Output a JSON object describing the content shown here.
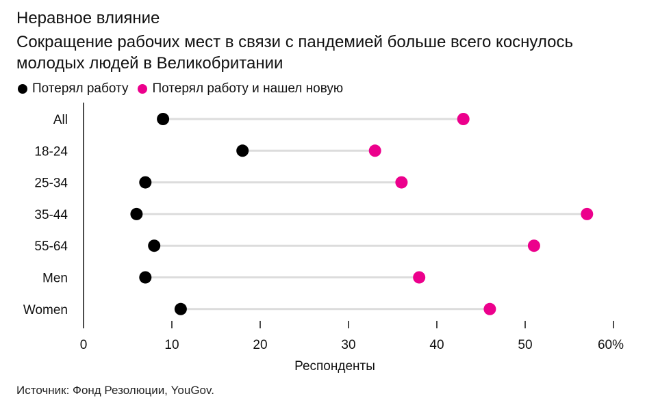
{
  "title": "Неравное влияние",
  "subtitle": "Сокращение рабочих мест в связи с пандемией больше всего коснулось молодых людей в Великобритании",
  "source": "Источник: Фонд Резолюции, YouGov.",
  "colors": {
    "lost_job": "#000000",
    "found_new": "#ec008c",
    "connector": "#dcdcdc",
    "axis": "#111111"
  },
  "chart_data": {
    "type": "dumbbell",
    "orientation": "horizontal",
    "categories": [
      "All",
      "18-24",
      "25-34",
      "35-44",
      "55-64",
      "Men",
      "Women"
    ],
    "series": [
      {
        "name": "Потерял работу",
        "color": "#000000",
        "values": [
          9,
          18,
          7,
          6,
          8,
          7,
          11
        ]
      },
      {
        "name": "Потерял работу и нашел новую",
        "color": "#ec008c",
        "values": [
          43,
          33,
          36,
          57,
          51,
          38,
          46
        ]
      }
    ],
    "xlabel": "Респонденты",
    "xlim": [
      0,
      60
    ],
    "x_ticks": [
      0,
      10,
      20,
      30,
      40,
      50,
      60
    ],
    "x_tick_labels": [
      "0",
      "10",
      "20",
      "30",
      "40",
      "50",
      "60%"
    ],
    "legend_position": "top-left",
    "grid": false
  }
}
